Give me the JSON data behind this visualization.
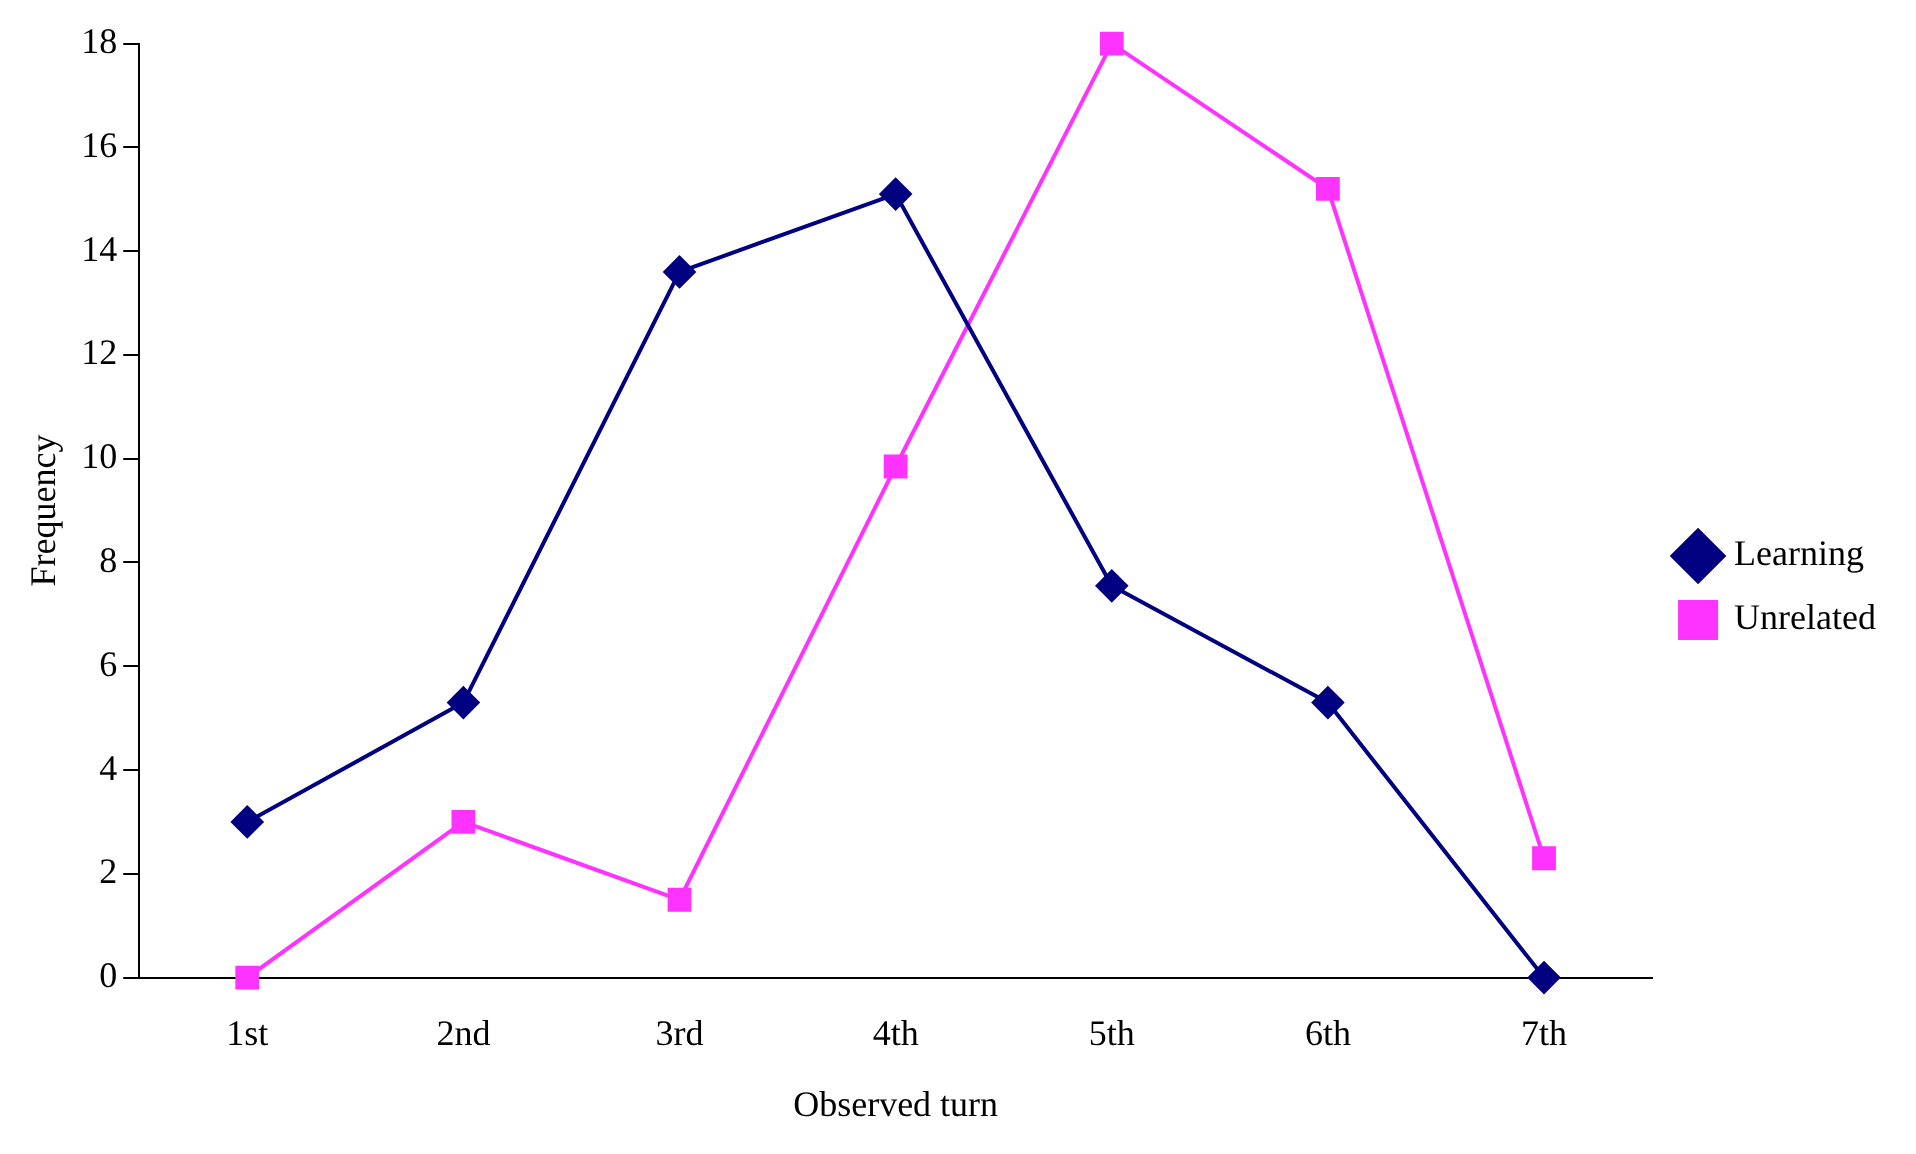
{
  "chart_data": {
    "type": "line",
    "xlabel": "Observed turn",
    "ylabel": "Frequency",
    "categories": [
      "1st",
      "2nd",
      "3rd",
      "4th",
      "5th",
      "6th",
      "7th"
    ],
    "series": [
      {
        "name": "Learning",
        "color": "#000080",
        "marker": "diamond",
        "values": [
          3,
          5.3,
          13.6,
          15.1,
          7.55,
          5.3,
          0
        ]
      },
      {
        "name": "Unrelated",
        "color": "#ff33ff",
        "marker": "square",
        "values": [
          0,
          3,
          1.5,
          9.85,
          18,
          15.2,
          2.3
        ]
      }
    ],
    "ylim": [
      0,
      18
    ],
    "yticks": [
      0,
      2,
      4,
      6,
      8,
      10,
      12,
      14,
      16,
      18
    ],
    "grid": false,
    "legend": "right"
  }
}
